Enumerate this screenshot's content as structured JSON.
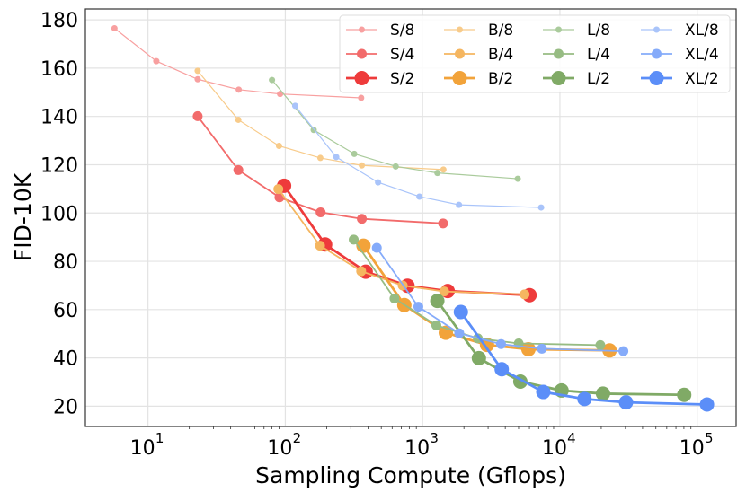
{
  "chart_data": {
    "type": "line",
    "title": "",
    "xlabel": "Sampling Compute (Gflops)",
    "ylabel": "FID-10K",
    "xscale": "log",
    "xlim": [
      3.5,
      192000
    ],
    "ylim": [
      11.6,
      184.5
    ],
    "xticks": [
      {
        "base": "10",
        "exp": "1",
        "value": 10
      },
      {
        "base": "10",
        "exp": "2",
        "value": 100
      },
      {
        "base": "10",
        "exp": "3",
        "value": 1000
      },
      {
        "base": "10",
        "exp": "4",
        "value": 10000
      },
      {
        "base": "10",
        "exp": "5",
        "value": 100000
      }
    ],
    "yticks": [
      "20",
      "40",
      "60",
      "80",
      "100",
      "120",
      "140",
      "160",
      "180"
    ],
    "grid": true,
    "legend_position": "top-right",
    "series": [
      {
        "name": "S/8",
        "color": "#F8A0A0",
        "size": "small",
        "x": [
          5.7,
          11.5,
          23,
          45.8,
          91.6,
          357
        ],
        "y": [
          176.5,
          162.9,
          155.4,
          151.1,
          149.3,
          147.7
        ]
      },
      {
        "name": "S/4",
        "color": "#F26B6B",
        "size": "medium",
        "x": [
          23,
          45.5,
          90.7,
          180.8,
          361,
          1410
        ],
        "y": [
          140.1,
          117.8,
          106.5,
          100.3,
          97.6,
          95.7
        ]
      },
      {
        "name": "S/2",
        "color": "#EE3B3B",
        "size": "large",
        "x": [
          98,
          195,
          385,
          776,
          1524,
          6010
        ],
        "y": [
          111.3,
          87.0,
          75.7,
          69.9,
          67.7,
          66.0
        ]
      },
      {
        "name": "B/8",
        "color": "#F8CB8A",
        "size": "small",
        "x": [
          23,
          45.5,
          90,
          180,
          361,
          1418
        ],
        "y": [
          158.9,
          138.6,
          127.8,
          122.8,
          119.7,
          118.0
        ]
      },
      {
        "name": "B/4",
        "color": "#F5B660",
        "size": "medium",
        "x": [
          89,
          179,
          357,
          716,
          1436,
          5530
        ],
        "y": [
          109.9,
          86.5,
          75.9,
          70.0,
          67.5,
          66.3
        ]
      },
      {
        "name": "B/2",
        "color": "#F2A33A",
        "size": "large",
        "x": [
          371,
          736,
          1476,
          2946,
          5900,
          23000
        ],
        "y": [
          86.5,
          61.9,
          50.4,
          45.4,
          43.6,
          43.1
        ]
      },
      {
        "name": "L/8",
        "color": "#AACB9C",
        "size": "small",
        "x": [
          80,
          161,
          318,
          637,
          1282,
          4930
        ],
        "y": [
          155.1,
          134.4,
          124.5,
          119.3,
          116.6,
          114.2
        ]
      },
      {
        "name": "L/4",
        "color": "#97BC83",
        "size": "medium",
        "x": [
          315,
          624,
          1259,
          2524,
          5010,
          19700
        ],
        "y": [
          89.0,
          64.6,
          53.5,
          48.1,
          46.0,
          45.3
        ]
      },
      {
        "name": "L/2",
        "color": "#80AA66",
        "size": "large",
        "x": [
          1280,
          2570,
          5150,
          10280,
          20600,
          80400
        ],
        "y": [
          63.6,
          39.9,
          30.2,
          26.5,
          25.2,
          24.7
        ]
      },
      {
        "name": "XL/8",
        "color": "#A9C4FA",
        "size": "small",
        "x": [
          118,
          235,
          474,
          948,
          1840,
          7300
        ],
        "y": [
          144.4,
          123.2,
          112.7,
          106.8,
          103.4,
          102.3
        ]
      },
      {
        "name": "XL/4",
        "color": "#85ABFA",
        "size": "medium",
        "x": [
          464,
          931,
          1849,
          3725,
          7390,
          29000
        ],
        "y": [
          85.6,
          61.2,
          50.2,
          45.7,
          43.8,
          42.8
        ]
      },
      {
        "name": "XL/2",
        "color": "#5B8EF8",
        "size": "large",
        "x": [
          1900,
          3770,
          7570,
          15100,
          30300,
          117800
        ],
        "y": [
          59.0,
          35.3,
          25.9,
          23.0,
          21.6,
          20.7
        ]
      }
    ]
  }
}
